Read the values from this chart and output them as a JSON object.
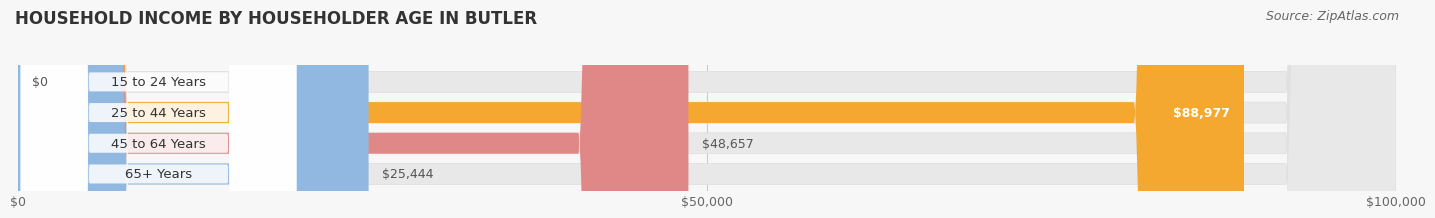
{
  "title": "HOUSEHOLD INCOME BY HOUSEHOLDER AGE IN BUTLER",
  "source": "Source: ZipAtlas.com",
  "categories": [
    "15 to 24 Years",
    "25 to 44 Years",
    "45 to 64 Years",
    "65+ Years"
  ],
  "values": [
    0,
    88977,
    48657,
    25444
  ],
  "bar_colors": [
    "#f0a0b0",
    "#f5a830",
    "#e08888",
    "#90b8e0"
  ],
  "bar_bg_color": "#e8e8e8",
  "xlim": [
    0,
    100000
  ],
  "xticks": [
    0,
    50000,
    100000
  ],
  "xtick_labels": [
    "$0",
    "$50,000",
    "$100,000"
  ],
  "value_labels": [
    "$0",
    "$88,977",
    "$48,657",
    "$25,444"
  ],
  "value_label_inside": [
    false,
    true,
    false,
    false
  ],
  "figure_bg": "#f7f7f7",
  "title_fontsize": 12,
  "source_fontsize": 9,
  "bar_label_fontsize": 9,
  "tick_fontsize": 9,
  "category_fontsize": 9.5
}
